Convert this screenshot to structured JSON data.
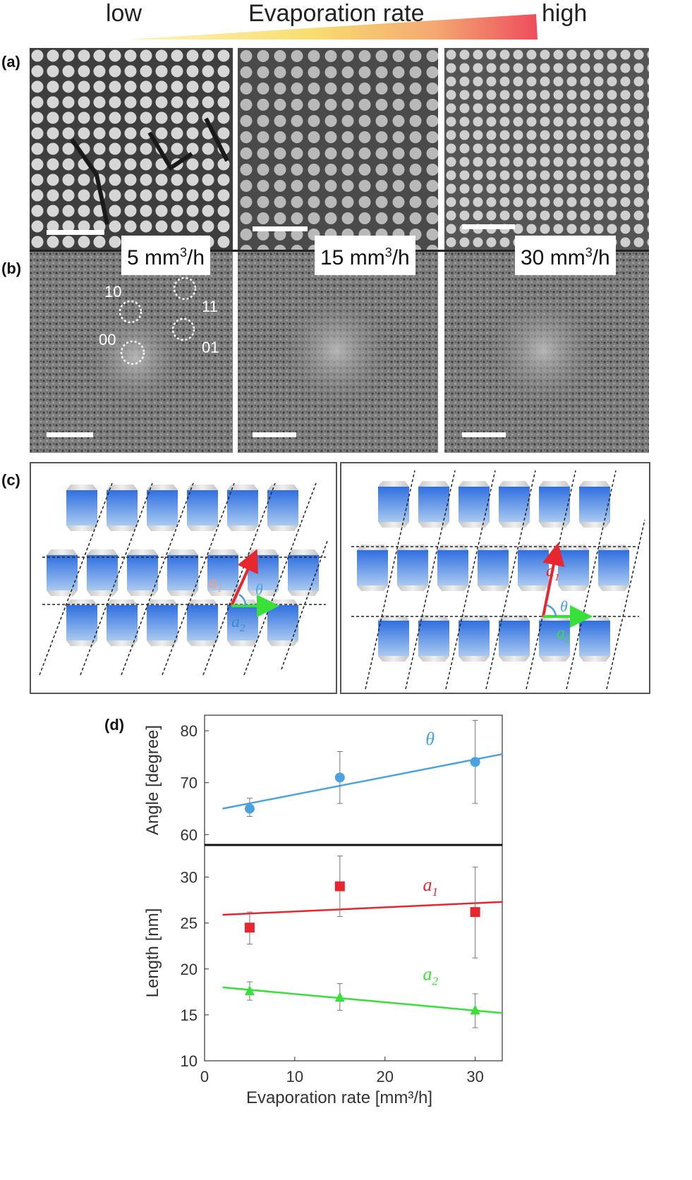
{
  "header": {
    "low_label": "low",
    "title": "Evaporation rate",
    "high_label": "high"
  },
  "panel_labels": {
    "a": "(a)",
    "b": "(b)",
    "c": "(c)",
    "d": "(d)"
  },
  "rates": [
    {
      "value": "5",
      "unit": "mm",
      "exp": "3",
      "per": "/h"
    },
    {
      "value": "15",
      "unit": "mm",
      "exp": "3",
      "per": "/h"
    },
    {
      "value": "30",
      "unit": "mm",
      "exp": "3",
      "per": "/h"
    }
  ],
  "fft_spot_labels": [
    "10",
    "11",
    "00",
    "01"
  ],
  "lattice_labels": {
    "a1": "a",
    "a1_sub": "1",
    "a2": "a",
    "a2_sub": "2",
    "theta": "θ"
  },
  "colors": {
    "a1": "#e8262f",
    "a2": "#38e038",
    "theta": "#4aa3e0",
    "cube": "#3c7ee0"
  },
  "chart_data": [
    {
      "type": "scatter",
      "title": "",
      "ylabel": "Angle [degree]",
      "xlim": [
        0,
        33
      ],
      "ylim": [
        58,
        83
      ],
      "yticks": [
        60,
        70,
        80
      ],
      "series": [
        {
          "name": "θ",
          "marker": "circle",
          "color": "#4aa3e0",
          "x": [
            5,
            15,
            30
          ],
          "y": [
            65,
            71,
            74
          ],
          "err_low": [
            63.5,
            66,
            66
          ],
          "err_high": [
            67,
            76,
            82
          ],
          "fit": {
            "x": [
              2,
              33
            ],
            "y": [
              65.0,
              75.5
            ]
          }
        }
      ]
    },
    {
      "type": "scatter",
      "title": "",
      "xlabel": "Evaporation rate [mm³/h]",
      "ylabel": "Length [nm]",
      "xlim": [
        0,
        33
      ],
      "ylim": [
        10,
        33.5
      ],
      "xticks": [
        0,
        10,
        20,
        30
      ],
      "yticks": [
        10,
        15,
        20,
        25,
        30
      ],
      "series": [
        {
          "name": "a1",
          "marker": "square",
          "color": "#e8262f",
          "x": [
            5,
            15,
            30
          ],
          "y": [
            24.5,
            29,
            26.2
          ],
          "err_low": [
            22.7,
            25.7,
            21.2
          ],
          "err_high": [
            26.2,
            32.3,
            31.1
          ],
          "fit": {
            "x": [
              2,
              33
            ],
            "y": [
              25.9,
              27.3
            ]
          }
        },
        {
          "name": "a2",
          "marker": "triangle",
          "color": "#38e038",
          "x": [
            5,
            15,
            30
          ],
          "y": [
            17.6,
            16.9,
            15.5
          ],
          "err_low": [
            16.6,
            15.5,
            13.6
          ],
          "err_high": [
            18.6,
            18.4,
            17.3
          ],
          "fit": {
            "x": [
              2,
              33
            ],
            "y": [
              18.0,
              15.2
            ]
          }
        }
      ]
    }
  ]
}
